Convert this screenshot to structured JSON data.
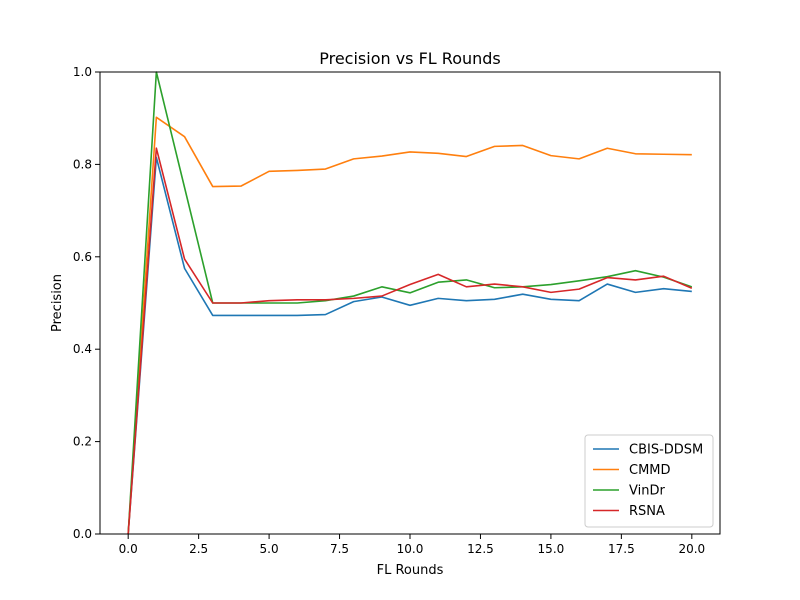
{
  "chart_data": {
    "type": "line",
    "title": "Precision vs FL Rounds",
    "xlabel": "FL Rounds",
    "ylabel": "Precision",
    "xlim": [
      -1.0,
      21.0
    ],
    "ylim": [
      0.0,
      1.0
    ],
    "xticks": [
      0.0,
      2.5,
      5.0,
      7.5,
      10.0,
      12.5,
      15.0,
      17.5,
      20.0
    ],
    "xtick_labels": [
      "0.0",
      "2.5",
      "5.0",
      "7.5",
      "10.0",
      "12.5",
      "15.0",
      "17.5",
      "20.0"
    ],
    "yticks": [
      0.0,
      0.2,
      0.4,
      0.6,
      0.8,
      1.0
    ],
    "ytick_labels": [
      "0.0",
      "0.2",
      "0.4",
      "0.6",
      "0.8",
      "1.0"
    ],
    "grid": false,
    "legend_position": "lower-right",
    "x": [
      0,
      1,
      2,
      3,
      4,
      5,
      6,
      7,
      8,
      9,
      10,
      11,
      12,
      13,
      14,
      15,
      16,
      17,
      18,
      19,
      20
    ],
    "series": [
      {
        "name": "CBIS-DDSM",
        "color": "#1f77b4",
        "values": [
          0.0,
          0.815,
          0.575,
          0.473,
          0.473,
          0.473,
          0.473,
          0.475,
          0.503,
          0.513,
          0.495,
          0.51,
          0.505,
          0.508,
          0.519,
          0.508,
          0.505,
          0.541,
          0.523,
          0.531,
          0.525
        ]
      },
      {
        "name": "CMMD",
        "color": "#ff7f0e",
        "values": [
          0.0,
          0.902,
          0.86,
          0.752,
          0.753,
          0.785,
          0.787,
          0.79,
          0.812,
          0.818,
          0.827,
          0.824,
          0.817,
          0.839,
          0.841,
          0.819,
          0.812,
          0.835,
          0.823,
          0.822,
          0.821
        ]
      },
      {
        "name": "VinDr",
        "color": "#2ca02c",
        "values": [
          0.0,
          1.0,
          0.75,
          0.5,
          0.5,
          0.5,
          0.5,
          0.505,
          0.515,
          0.535,
          0.522,
          0.545,
          0.55,
          0.533,
          0.535,
          0.54,
          0.548,
          0.557,
          0.57,
          0.556,
          0.535
        ]
      },
      {
        "name": "RSNA",
        "color": "#d62728",
        "values": [
          0.0,
          0.835,
          0.595,
          0.5,
          0.5,
          0.505,
          0.507,
          0.507,
          0.51,
          0.515,
          0.54,
          0.562,
          0.535,
          0.541,
          0.535,
          0.523,
          0.53,
          0.555,
          0.55,
          0.558,
          0.532
        ]
      }
    ]
  }
}
